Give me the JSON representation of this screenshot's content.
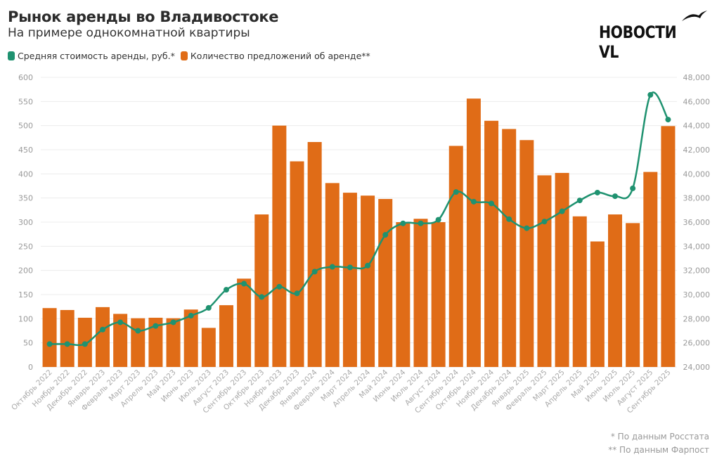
{
  "header": {
    "title": "Рынок аренды во Владивостоке",
    "subtitle": "На примере однокомнатной квартиры",
    "logo": "НОВОСТИ VL"
  },
  "footnotes": [
    "* По данным Росстата",
    "** По данным Фарпост"
  ],
  "chart_data": {
    "type": "bar+line",
    "title": "Рынок аренды во Владивостоке",
    "subtitle": "На примере однокомнатной квартиры",
    "legend_position": "top-left",
    "grid": true,
    "categories": [
      "Октябрь 2022",
      "Ноябрь 2022",
      "Декабрь 2022",
      "Январь 2023",
      "Февраль 2023",
      "Март 2023",
      "Апрель 2023",
      "Май 2023",
      "Июнь 2023",
      "Июль 2023",
      "Август 2023",
      "Сентябрь 2023",
      "Октябрь 2023",
      "Ноябрь 2023",
      "Декабрь 2023",
      "Январь 2024",
      "Февраль 2024",
      "Март 2024",
      "Апрель 2024",
      "Май 2024",
      "Июнь 2024",
      "Июль 2024",
      "Август 2024",
      "Сентябрь 2024",
      "Октябрь 2024",
      "Ноябрь 2024",
      "Декабрь 2024",
      "Январь 2025",
      "Февраль 2025",
      "Март 2025",
      "Апрель 2025",
      "Май 2025",
      "Июнь 2025",
      "Июль 2025",
      "Август 2025",
      "Сентябрь 2025"
    ],
    "left_axis": {
      "range": [
        0,
        600
      ],
      "ticks": [
        "0",
        "50",
        "100",
        "150",
        "200",
        "250",
        "300",
        "350",
        "400",
        "450",
        "500",
        "550",
        "600"
      ]
    },
    "right_axis": {
      "range": [
        24000,
        48000
      ],
      "ticks": [
        "24,000",
        "26,000",
        "28,000",
        "30,000",
        "32,000",
        "34,000",
        "36,000",
        "38,000",
        "40,000",
        "42,000",
        "44,000",
        "46,000",
        "48,000"
      ]
    },
    "series": [
      {
        "name": "Средняя стоимость аренды, руб.*",
        "type": "line",
        "axis": "right",
        "color": "#1f9270",
        "values": [
          25900,
          25900,
          25900,
          27100,
          27700,
          27000,
          27400,
          27700,
          28250,
          28900,
          30400,
          30900,
          29800,
          30650,
          30100,
          31900,
          32300,
          32250,
          32400,
          34950,
          35900,
          35900,
          36200,
          38500,
          37700,
          37550,
          36250,
          35500,
          36050,
          36900,
          37800,
          38450,
          38150,
          38800,
          46550,
          44500
        ]
      },
      {
        "name": "Количество предложений об аренде**",
        "type": "bar",
        "axis": "left",
        "color": "#e06c17",
        "values": [
          122,
          118,
          102,
          124,
          110,
          101,
          102,
          101,
          119,
          81,
          128,
          183,
          316,
          500,
          426,
          466,
          381,
          361,
          355,
          348,
          300,
          307,
          300,
          458,
          556,
          510,
          493,
          470,
          397,
          402,
          312,
          260,
          316,
          298,
          404,
          499
        ]
      }
    ]
  }
}
